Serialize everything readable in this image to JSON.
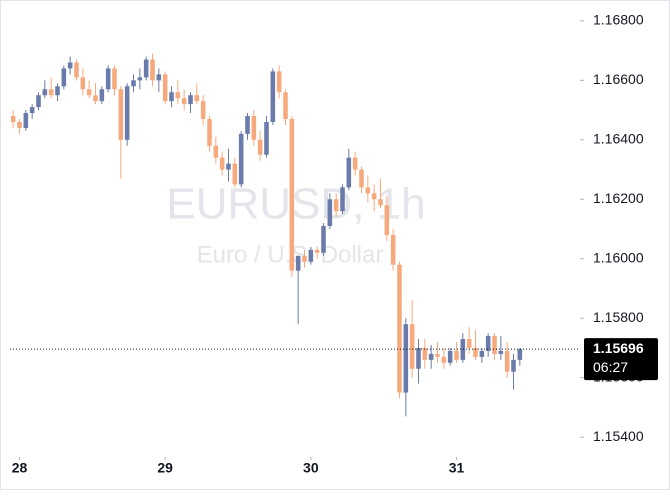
{
  "chart_data": {
    "type": "candlestick",
    "watermark": "EURUSD, 1h",
    "watermark_subtitle": "Euro / U.S. Dollar",
    "up_color": "#6a7aaa",
    "down_color": "#f5a97c",
    "open": [
      1.1648,
      1.1646,
      1.1644,
      1.1649,
      1.1651,
      1.1655,
      1.1657,
      1.1655,
      1.1658,
      1.1664,
      1.1666,
      1.1661,
      1.1657,
      1.1655,
      1.1653,
      1.1657,
      1.1664,
      1.1657,
      1.164,
      1.1658,
      1.166,
      1.1661,
      1.1667,
      1.166,
      1.1662,
      1.1653,
      1.1656,
      1.1654,
      1.1652,
      1.1655,
      1.1653,
      1.1647,
      1.1638,
      1.1634,
      1.163,
      1.1632,
      1.1625,
      1.1642,
      1.1648,
      1.164,
      1.1635,
      1.1646,
      1.1663,
      1.1656,
      1.1647,
      1.1596,
      1.1601,
      1.1599,
      1.1603,
      1.1602,
      1.1611,
      1.162,
      1.1616,
      1.1624,
      1.1634,
      1.163,
      1.1624,
      1.1622,
      1.162,
      1.1618,
      1.1608,
      1.1598,
      1.1555,
      1.1578,
      1.1563,
      1.157,
      1.1566,
      1.1568,
      1.1567,
      1.1565,
      1.1569,
      1.1566,
      1.1573,
      1.157,
      1.1567,
      1.1569,
      1.1574,
      1.1568,
      1.1569,
      1.1562,
      1.1566
    ],
    "high": [
      1.165,
      1.1647,
      1.165,
      1.1652,
      1.1656,
      1.166,
      1.1661,
      1.1659,
      1.1665,
      1.1668,
      1.1667,
      1.1664,
      1.166,
      1.1659,
      1.1658,
      1.1665,
      1.1665,
      1.1658,
      1.1659,
      1.1662,
      1.1664,
      1.1668,
      1.1669,
      1.1664,
      1.1663,
      1.1658,
      1.166,
      1.1657,
      1.1656,
      1.1659,
      1.1655,
      1.1648,
      1.1641,
      1.1636,
      1.1637,
      1.1634,
      1.1643,
      1.1649,
      1.165,
      1.1643,
      1.1648,
      1.1664,
      1.1665,
      1.1657,
      1.1648,
      1.16,
      1.1603,
      1.1604,
      1.1604,
      1.1612,
      1.1622,
      1.1622,
      1.1625,
      1.1637,
      1.1636,
      1.1631,
      1.1628,
      1.1625,
      1.1627,
      1.1621,
      1.161,
      1.1599,
      1.158,
      1.1586,
      1.1573,
      1.1573,
      1.1571,
      1.1572,
      1.157,
      1.157,
      1.1572,
      1.1575,
      1.1577,
      1.1576,
      1.157,
      1.1575,
      1.1575,
      1.1574,
      1.1572,
      1.1568,
      1.157
    ],
    "low": [
      1.1644,
      1.1642,
      1.1643,
      1.1647,
      1.165,
      1.1654,
      1.1654,
      1.1653,
      1.1657,
      1.1662,
      1.166,
      1.1655,
      1.1654,
      1.1652,
      1.1652,
      1.1656,
      1.1655,
      1.1627,
      1.1638,
      1.1656,
      1.1657,
      1.166,
      1.1658,
      1.1656,
      1.1652,
      1.1651,
      1.1652,
      1.165,
      1.1649,
      1.1652,
      1.1645,
      1.1636,
      1.1632,
      1.1628,
      1.1626,
      1.1624,
      1.1624,
      1.164,
      1.1638,
      1.1633,
      1.1634,
      1.1645,
      1.1654,
      1.1645,
      1.1594,
      1.1578,
      1.1597,
      1.1598,
      1.16,
      1.1601,
      1.161,
      1.1614,
      1.1615,
      1.1623,
      1.1628,
      1.1622,
      1.1619,
      1.1616,
      1.1617,
      1.1606,
      1.1596,
      1.1553,
      1.1547,
      1.156,
      1.1558,
      1.1563,
      1.1563,
      1.1565,
      1.1563,
      1.1564,
      1.1565,
      1.1565,
      1.1568,
      1.1566,
      1.1565,
      1.1567,
      1.1566,
      1.1566,
      1.156,
      1.1556,
      1.1564
    ],
    "close": [
      1.1646,
      1.1644,
      1.1649,
      1.1651,
      1.1655,
      1.1657,
      1.1655,
      1.1658,
      1.1664,
      1.1666,
      1.1661,
      1.1657,
      1.1655,
      1.1653,
      1.1657,
      1.1664,
      1.1657,
      1.164,
      1.1658,
      1.166,
      1.1661,
      1.1667,
      1.166,
      1.1662,
      1.1653,
      1.1656,
      1.1654,
      1.1652,
      1.1655,
      1.1653,
      1.1647,
      1.1638,
      1.1634,
      1.163,
      1.1632,
      1.1625,
      1.1642,
      1.1648,
      1.164,
      1.1635,
      1.1646,
      1.1663,
      1.1656,
      1.1647,
      1.1596,
      1.1601,
      1.1599,
      1.1603,
      1.1602,
      1.1611,
      1.162,
      1.1616,
      1.1624,
      1.1634,
      1.163,
      1.1624,
      1.1622,
      1.162,
      1.1618,
      1.1608,
      1.1598,
      1.1555,
      1.1578,
      1.1563,
      1.157,
      1.1566,
      1.1568,
      1.1567,
      1.1565,
      1.1569,
      1.1566,
      1.1573,
      1.157,
      1.1567,
      1.1569,
      1.1574,
      1.1568,
      1.1569,
      1.1562,
      1.1566,
      1.15696
    ],
    "xlim": [
      -0.5,
      89.5
    ],
    "xticks": [
      {
        "value": 1,
        "label": "28"
      },
      {
        "value": 24,
        "label": "29"
      },
      {
        "value": 47,
        "label": "30"
      },
      {
        "value": 70,
        "label": "31"
      }
    ],
    "ylim": [
      1.1534,
      1.1685
    ],
    "yticks": [
      {
        "value": 1.154,
        "label": "1.15400"
      },
      {
        "value": 1.156,
        "label": "1.15600"
      },
      {
        "value": 1.158,
        "label": "1.15800"
      },
      {
        "value": 1.16,
        "label": "1.16000"
      },
      {
        "value": 1.162,
        "label": "1.16200"
      },
      {
        "value": 1.164,
        "label": "1.16400"
      },
      {
        "value": 1.166,
        "label": "1.16600"
      },
      {
        "value": 1.168,
        "label": "1.16800"
      }
    ],
    "last_price": 1.15696,
    "countdown": "06:27"
  }
}
